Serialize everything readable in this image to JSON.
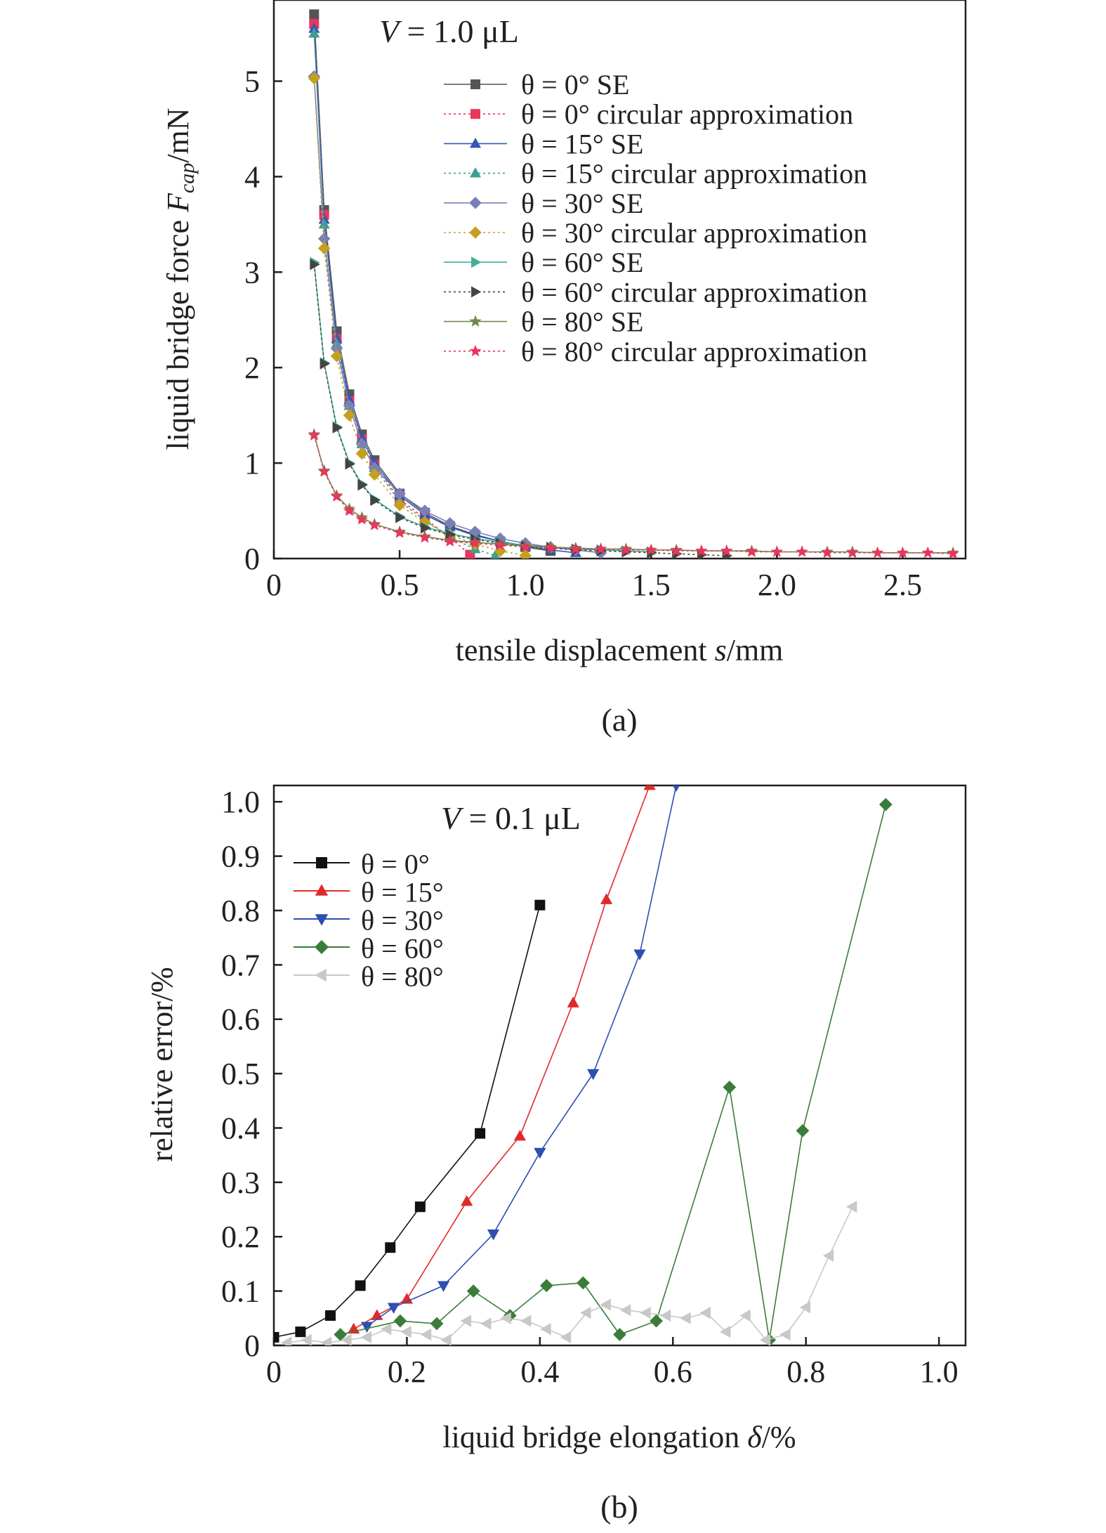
{
  "chart_data": [
    {
      "type": "line",
      "caption": "(a)",
      "annotation": {
        "prefix": "V",
        "text": " = 1.0 μL"
      },
      "xlabel": {
        "text": "tensile displacement ",
        "var": "s",
        "unit": "/mm"
      },
      "ylabel": {
        "text": "liquid bridge force ",
        "var": "F",
        "sub": "cap",
        "unit": "/mN"
      },
      "xlim": [
        0,
        2.75
      ],
      "ylim": [
        0,
        5.85
      ],
      "xticks": [
        0,
        0.5,
        1.0,
        1.5,
        2.0,
        2.5
      ],
      "xtick_labels": [
        "0",
        "0.5",
        "1.0",
        "1.5",
        "2.0",
        "2.5"
      ],
      "yticks": [
        0,
        1,
        2,
        3,
        4,
        5
      ],
      "ytick_labels": [
        "0",
        "1",
        "2",
        "3",
        "4",
        "5"
      ],
      "legend_position": "top-right",
      "grid": false,
      "series": [
        {
          "name": "θ = 0° SE",
          "marker": "square",
          "color": "#555555",
          "dash": "solid",
          "x": [
            0.16,
            0.2,
            0.25,
            0.3,
            0.35,
            0.4,
            0.5,
            0.6,
            0.7,
            0.8,
            0.9,
            1.0,
            1.1
          ],
          "y": [
            5.7,
            3.65,
            2.38,
            1.72,
            1.3,
            1.03,
            0.68,
            0.48,
            0.34,
            0.25,
            0.18,
            0.12,
            0.08
          ]
        },
        {
          "name": "θ = 0° circular approximation",
          "marker": "square",
          "color": "#e8365d",
          "dash": "dot",
          "x": [
            0.16,
            0.2,
            0.25,
            0.3,
            0.35,
            0.4,
            0.5,
            0.6,
            0.7,
            0.78
          ],
          "y": [
            5.6,
            3.6,
            2.3,
            1.65,
            1.25,
            0.98,
            0.62,
            0.42,
            0.22,
            0.04
          ]
        },
        {
          "name": "θ = 15° SE",
          "marker": "triangle-up",
          "color": "#3457b5",
          "dash": "solid",
          "x": [
            0.16,
            0.2,
            0.25,
            0.3,
            0.35,
            0.4,
            0.5,
            0.6,
            0.7,
            0.8,
            0.9,
            1.0,
            1.1,
            1.2
          ],
          "y": [
            5.55,
            3.55,
            2.3,
            1.66,
            1.26,
            1.0,
            0.66,
            0.46,
            0.33,
            0.24,
            0.18,
            0.13,
            0.09,
            0.06
          ]
        },
        {
          "name": "θ = 15° circular approximation",
          "marker": "triangle-up",
          "color": "#3f9e8f",
          "dash": "dot",
          "x": [
            0.16,
            0.2,
            0.25,
            0.3,
            0.35,
            0.4,
            0.5,
            0.6,
            0.7,
            0.8,
            0.88
          ],
          "y": [
            5.5,
            3.5,
            2.25,
            1.6,
            1.2,
            0.95,
            0.6,
            0.4,
            0.22,
            0.1,
            0.03
          ]
        },
        {
          "name": "θ = 30° SE",
          "marker": "diamond",
          "color": "#7b7fb8",
          "dash": "solid",
          "x": [
            0.16,
            0.2,
            0.25,
            0.3,
            0.35,
            0.4,
            0.5,
            0.6,
            0.7,
            0.8,
            0.9,
            1.0,
            1.1,
            1.2,
            1.3
          ],
          "y": [
            5.05,
            3.35,
            2.2,
            1.6,
            1.2,
            0.95,
            0.68,
            0.5,
            0.37,
            0.28,
            0.21,
            0.16,
            0.12,
            0.09,
            0.06
          ]
        },
        {
          "name": "θ = 30° circular approximation",
          "marker": "diamond",
          "color": "#c4a020",
          "dash": "dot",
          "x": [
            0.16,
            0.2,
            0.25,
            0.3,
            0.35,
            0.4,
            0.5,
            0.6,
            0.7,
            0.8,
            0.9,
            1.0
          ],
          "y": [
            5.03,
            3.25,
            2.12,
            1.5,
            1.1,
            0.88,
            0.56,
            0.38,
            0.25,
            0.15,
            0.08,
            0.03
          ]
        },
        {
          "name": "θ = 60° SE",
          "marker": "triangle-right",
          "color": "#3fae9a",
          "dash": "solid",
          "x": [
            0.16,
            0.2,
            0.25,
            0.3,
            0.35,
            0.4,
            0.5,
            0.6,
            0.7,
            0.8,
            0.9,
            1.0,
            1.1,
            1.2,
            1.3,
            1.4,
            1.5
          ],
          "y": [
            3.1,
            2.05,
            1.38,
            1.0,
            0.78,
            0.62,
            0.44,
            0.33,
            0.26,
            0.21,
            0.17,
            0.14,
            0.12,
            0.1,
            0.09,
            0.08,
            0.07
          ]
        },
        {
          "name": "θ = 60° circular approximation",
          "marker": "triangle-right",
          "color": "#444444",
          "dash": "dot",
          "x": [
            0.16,
            0.2,
            0.25,
            0.3,
            0.35,
            0.4,
            0.5,
            0.6,
            0.7,
            0.8,
            0.9,
            1.0,
            1.1,
            1.2,
            1.3,
            1.4,
            1.5,
            1.6,
            1.7,
            1.8
          ],
          "y": [
            3.08,
            2.04,
            1.37,
            0.99,
            0.77,
            0.61,
            0.43,
            0.32,
            0.25,
            0.2,
            0.16,
            0.13,
            0.11,
            0.09,
            0.08,
            0.07,
            0.06,
            0.05,
            0.04,
            0.03
          ]
        },
        {
          "name": "θ = 80° SE",
          "marker": "star",
          "color": "#6f8a4c",
          "dash": "solid",
          "x": [
            0.16,
            0.2,
            0.25,
            0.3,
            0.35,
            0.4,
            0.5,
            0.6,
            0.7,
            0.8,
            0.9,
            1.0,
            1.1,
            1.2,
            1.3,
            1.4,
            1.5,
            1.6,
            1.7,
            1.8,
            1.9,
            2.0,
            2.1,
            2.2,
            2.3,
            2.4,
            2.5,
            2.6,
            2.7
          ],
          "y": [
            1.3,
            0.92,
            0.66,
            0.52,
            0.43,
            0.36,
            0.28,
            0.23,
            0.19,
            0.17,
            0.15,
            0.13,
            0.12,
            0.11,
            0.1,
            0.1,
            0.09,
            0.09,
            0.08,
            0.08,
            0.08,
            0.07,
            0.07,
            0.07,
            0.07,
            0.06,
            0.06,
            0.06,
            0.06
          ]
        },
        {
          "name": "θ = 80° circular approximation",
          "marker": "star",
          "color": "#e8365d",
          "dash": "dot",
          "x": [
            0.16,
            0.2,
            0.25,
            0.3,
            0.35,
            0.4,
            0.5,
            0.6,
            0.7,
            0.8,
            0.9,
            1.0,
            1.1,
            1.2,
            1.3,
            1.4,
            1.5,
            1.6,
            1.7,
            1.8,
            1.9,
            2.0,
            2.1,
            2.2,
            2.3,
            2.4,
            2.5,
            2.6,
            2.7
          ],
          "y": [
            1.29,
            0.91,
            0.65,
            0.5,
            0.41,
            0.35,
            0.27,
            0.22,
            0.18,
            0.16,
            0.14,
            0.12,
            0.11,
            0.1,
            0.1,
            0.09,
            0.09,
            0.08,
            0.08,
            0.08,
            0.07,
            0.07,
            0.07,
            0.06,
            0.06,
            0.06,
            0.06,
            0.06,
            0.05
          ]
        }
      ]
    },
    {
      "type": "line",
      "caption": "(b)",
      "annotation": {
        "prefix": "V",
        "text": " = 0.1 μL"
      },
      "xlabel": {
        "text": "liquid bridge elongation ",
        "var": "δ",
        "unit": "/%"
      },
      "ylabel": {
        "text": "relative error/%"
      },
      "xlim": [
        0,
        1.04
      ],
      "ylim": [
        0,
        1.03
      ],
      "xticks": [
        0,
        0.2,
        0.4,
        0.6,
        0.8,
        1.0
      ],
      "xtick_labels": [
        "0",
        "0.2",
        "0.4",
        "0.6",
        "0.8",
        "1.0"
      ],
      "yticks": [
        0,
        0.1,
        0.2,
        0.3,
        0.4,
        0.5,
        0.6,
        0.7,
        0.8,
        0.9,
        1.0
      ],
      "ytick_labels": [
        "0",
        "0.1",
        "0.2",
        "0.3",
        "0.4",
        "0.5",
        "0.6",
        "0.7",
        "0.8",
        "0.9",
        "1.0"
      ],
      "legend_position": "top-left",
      "grid": false,
      "series": [
        {
          "name": "θ = 0°",
          "marker": "square",
          "color": "#111111",
          "dash": "solid",
          "x": [
            0.0,
            0.04,
            0.085,
            0.13,
            0.175,
            0.22,
            0.31,
            0.4
          ],
          "y": [
            0.015,
            0.025,
            0.055,
            0.11,
            0.18,
            0.255,
            0.39,
            0.81
          ]
        },
        {
          "name": "θ = 15°",
          "marker": "triangle-up",
          "color": "#e02a2a",
          "dash": "solid",
          "x": [
            0.12,
            0.155,
            0.2,
            0.29,
            0.37,
            0.45,
            0.5,
            0.565
          ],
          "y": [
            0.03,
            0.055,
            0.085,
            0.265,
            0.385,
            0.63,
            0.82,
            1.03
          ]
        },
        {
          "name": "θ = 30°",
          "marker": "triangle-down",
          "color": "#2c4fb0",
          "dash": "solid",
          "x": [
            0.14,
            0.18,
            0.255,
            0.33,
            0.4,
            0.48,
            0.55,
            0.605
          ],
          "y": [
            0.035,
            0.07,
            0.11,
            0.205,
            0.355,
            0.5,
            0.72,
            1.03
          ]
        },
        {
          "name": "θ = 60°",
          "marker": "diamond",
          "color": "#3a7d3a",
          "dash": "solid",
          "x": [
            0.1,
            0.19,
            0.245,
            0.3,
            0.355,
            0.41,
            0.465,
            0.52,
            0.575,
            0.685,
            0.745,
            0.795,
            0.92
          ],
          "y": [
            0.02,
            0.045,
            0.04,
            0.1,
            0.055,
            0.11,
            0.115,
            0.02,
            0.045,
            0.475,
            0.01,
            0.395,
            0.995
          ]
        },
        {
          "name": "θ = 80°",
          "marker": "triangle-left",
          "color": "#c8c8c8",
          "dash": "solid",
          "x": [
            0.02,
            0.05,
            0.08,
            0.11,
            0.14,
            0.17,
            0.2,
            0.23,
            0.26,
            0.29,
            0.32,
            0.35,
            0.38,
            0.41,
            0.44,
            0.47,
            0.5,
            0.53,
            0.56,
            0.59,
            0.62,
            0.65,
            0.68,
            0.71,
            0.74,
            0.77,
            0.8,
            0.835,
            0.87
          ],
          "y": [
            0.005,
            0.01,
            0.005,
            0.01,
            0.015,
            0.03,
            0.025,
            0.02,
            0.01,
            0.045,
            0.04,
            0.05,
            0.045,
            0.03,
            0.015,
            0.06,
            0.075,
            0.065,
            0.06,
            0.055,
            0.05,
            0.06,
            0.025,
            0.055,
            0.01,
            0.02,
            0.07,
            0.165,
            0.255
          ]
        }
      ]
    }
  ]
}
